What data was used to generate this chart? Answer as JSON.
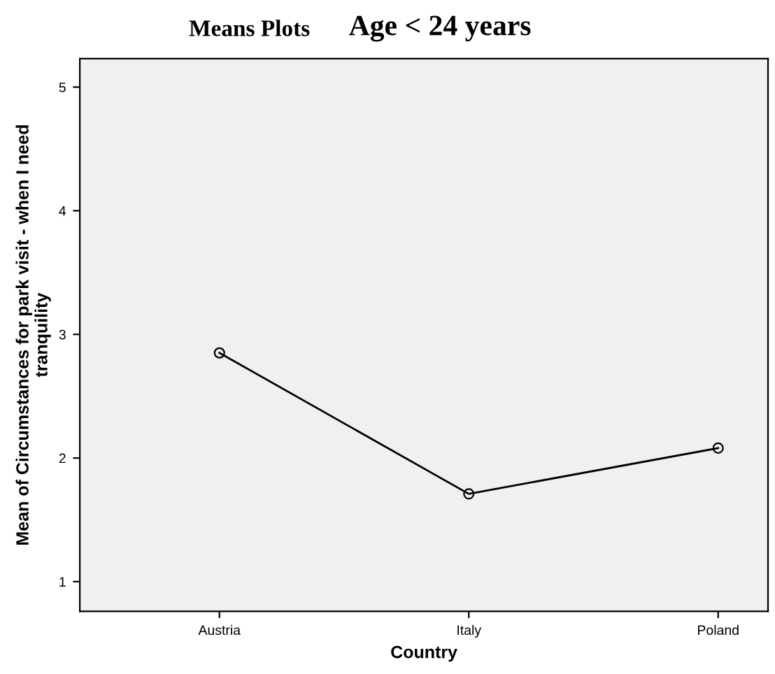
{
  "chart_data": {
    "type": "line",
    "title": "Means Plots",
    "subtitle": "Age < 24 years",
    "xlabel": "Country",
    "ylabel": "Mean of Circumstances for park visit - when I need\ntranquility",
    "categories": [
      "Austria",
      "Italy",
      "Poland"
    ],
    "series": [
      {
        "color": "#000000",
        "values": [
          2.85,
          1.71,
          2.08
        ]
      }
    ],
    "ylim": [
      0.76,
      5.23
    ],
    "yticks": [
      1,
      2,
      3,
      4,
      5
    ],
    "grid": false,
    "legend": false,
    "marker": "circle",
    "line_style": "solid"
  }
}
